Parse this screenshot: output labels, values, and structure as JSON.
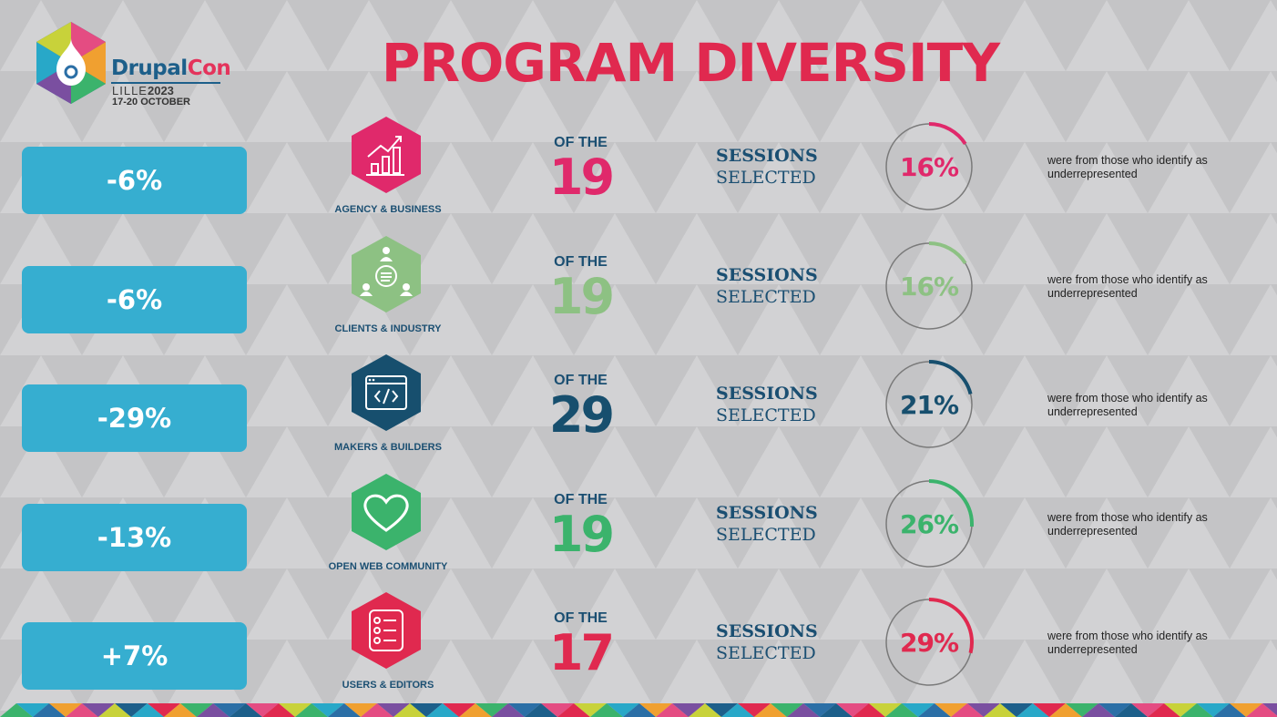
{
  "header": {
    "title": "PROGRAM DIVERSITY",
    "logo": {
      "brand_a": "Drupal",
      "brand_b": "Con",
      "city": "LILLE",
      "year": "2023",
      "dates": "17-20 OCTOBER"
    }
  },
  "labels": {
    "of_the": "OF THE",
    "sessions": "SESSIONS",
    "selected": "SELECTED",
    "note": "were from those who identify as underrepresented"
  },
  "rows": [
    {
      "change": "-6%",
      "track": "AGENCY & BUSINESS",
      "count": "19",
      "percent": "16%",
      "fraction": 0.16,
      "color": "#e0296b",
      "icon": "chart-growth-icon"
    },
    {
      "change": "-6%",
      "track": "CLIENTS & INDUSTRY",
      "count": "19",
      "percent": "16%",
      "fraction": 0.16,
      "color": "#8dc183",
      "icon": "network-people-icon"
    },
    {
      "change": "-29%",
      "track": "MAKERS & BUILDERS",
      "count": "29",
      "percent": "21%",
      "fraction": 0.21,
      "color": "#174f6e",
      "icon": "code-window-icon"
    },
    {
      "change": "-13%",
      "track": "OPEN WEB COMMUNITY",
      "count": "19",
      "percent": "26%",
      "fraction": 0.26,
      "color": "#3bb36c",
      "icon": "heart-icon"
    },
    {
      "change": "+7%",
      "track": "USERS & EDITORS",
      "count": "17",
      "percent": "29%",
      "fraction": 0.29,
      "color": "#e0294f",
      "icon": "checklist-icon"
    }
  ]
}
